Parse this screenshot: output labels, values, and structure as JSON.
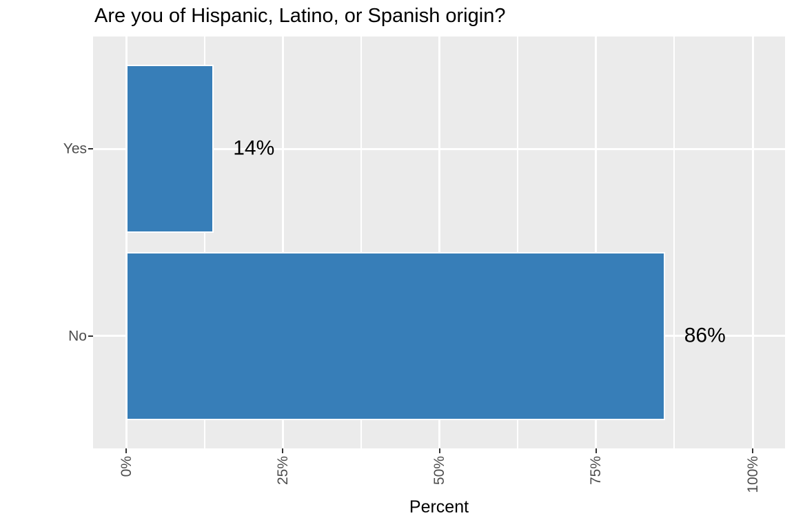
{
  "chart_data": {
    "type": "bar",
    "orientation": "horizontal",
    "title": "Are you of Hispanic, Latino, or Spanish origin?",
    "categories": [
      "Yes",
      "No"
    ],
    "values": [
      14,
      86
    ],
    "bar_labels": [
      "14%",
      "86%"
    ],
    "xlabel": "Percent",
    "ylabel": "",
    "x_ticks": [
      0,
      25,
      50,
      75,
      100
    ],
    "x_tick_labels": [
      "0%",
      "25%",
      "50%",
      "75%",
      "100%"
    ],
    "x_minor_ticks": [
      12.5,
      37.5,
      62.5,
      87.5
    ],
    "xlim": [
      -5.3,
      105.3
    ],
    "grid": true,
    "legend": false,
    "style": "ggplot-gray",
    "colors": {
      "bar_fill": "#377EB8",
      "bar_outline": "#FFFFFF",
      "panel_background": "#EBEBEB",
      "gridline": "#FFFFFF",
      "axis_text": "#4D4D4D",
      "tick_mark": "#333333",
      "title_text": "#000000",
      "bar_label_text": "#000000"
    }
  }
}
